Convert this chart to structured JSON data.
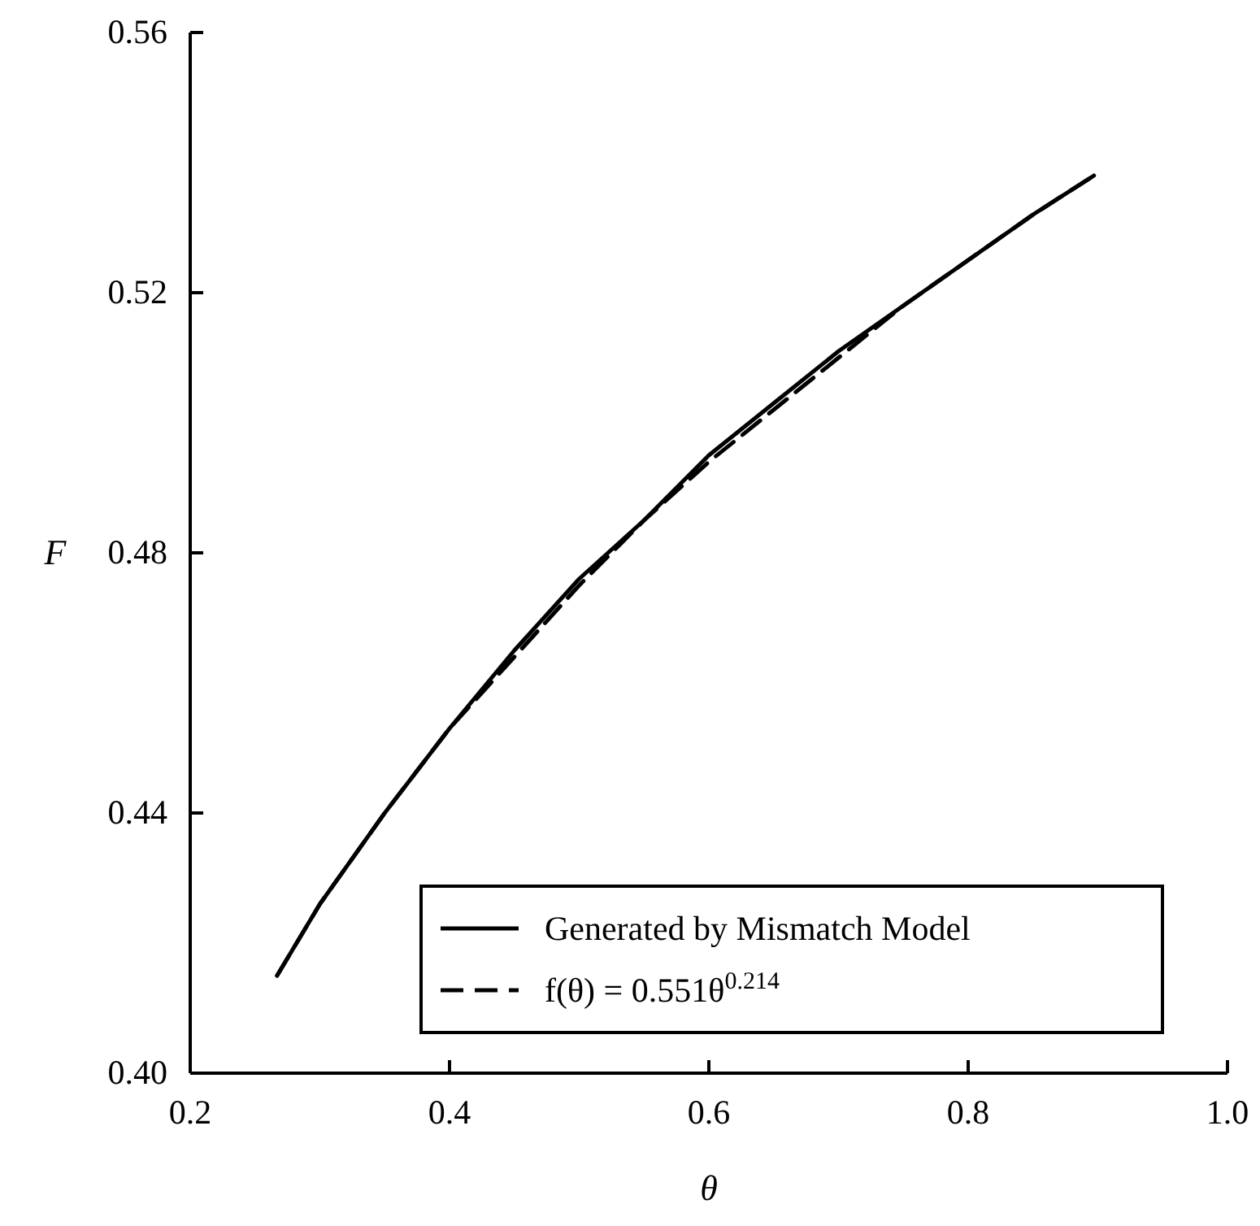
{
  "chart_data": {
    "type": "line",
    "xlabel": "θ",
    "ylabel": "F",
    "xlim": [
      0.2,
      1.0
    ],
    "xticks": [
      0.2,
      0.4,
      0.6,
      0.8,
      {
        "value": 1.0,
        "label": "1.0"
      }
    ],
    "ylim": [
      0.4,
      0.56
    ],
    "yticks": [
      {
        "value": 0.4,
        "label": "0.40"
      },
      {
        "value": 0.44,
        "label": "0.44"
      },
      {
        "value": 0.48,
        "label": "0.48"
      },
      {
        "value": 0.52,
        "label": "0.52"
      },
      {
        "value": 0.56,
        "label": "0.56"
      }
    ],
    "x": [
      0.267,
      0.3,
      0.35,
      0.4,
      0.45,
      0.5,
      0.55,
      0.6,
      0.65,
      0.7,
      0.75,
      0.8,
      0.85,
      0.897
    ],
    "series": [
      {
        "name": "Generated by Mismatch Model",
        "color": "#000000",
        "line_style": "solid",
        "values": [
          0.415,
          0.426,
          0.44,
          0.453,
          0.465,
          0.476,
          0.485,
          0.495,
          0.503,
          0.511,
          0.518,
          0.525,
          0.532,
          0.538
        ]
      },
      {
        "name": "f(θ) = 0.551θ$^{0.214}$",
        "color": "#000000",
        "line_style": "dashed",
        "values": [
          0.415,
          0.426,
          0.44,
          0.453,
          0.464,
          0.475,
          0.485,
          0.494,
          0.502,
          0.51,
          0.518,
          0.525,
          0.532,
          0.538
        ]
      }
    ],
    "grid": false,
    "legend": "bottom right",
    "marker": "none"
  }
}
